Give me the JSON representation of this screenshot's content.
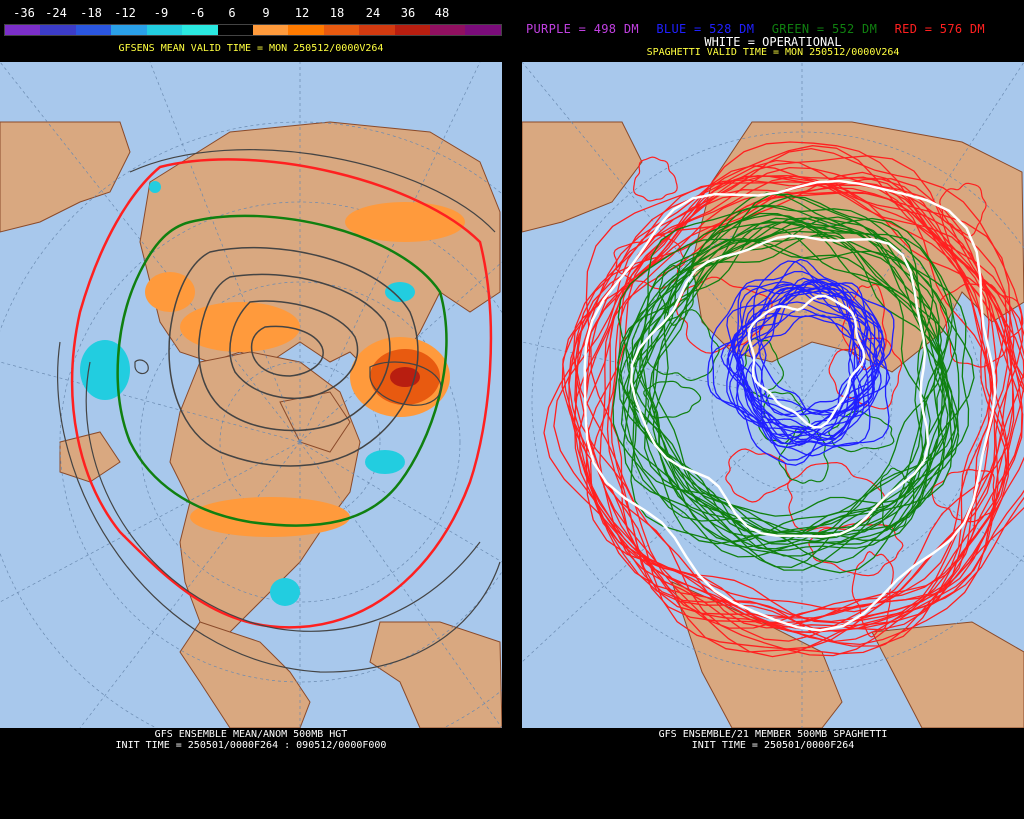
{
  "left_panel": {
    "scale_labels": [
      "-36",
      "-24",
      "-18",
      "-12",
      "-9",
      "-6",
      "6",
      "9",
      "12",
      "18",
      "24",
      "36",
      "48"
    ],
    "scale_colors": [
      "#7b2fc9",
      "#3c3cc8",
      "#2a56e0",
      "#2aa0e8",
      "#22cde0",
      "#2ae8e0",
      "#000000",
      "#ff9a3c",
      "#ff7a00",
      "#e85a10",
      "#d23a10",
      "#b81e10",
      "#901060",
      "#7a0c7a"
    ],
    "valid_time": "GFSENS MEAN VALID TIME = MON 250512/0000V264",
    "footer_line1": "GFS ENSEMBLE MEAN/ANOM 500MB HGT",
    "footer_line2": "INIT TIME = 250501/0000F264 : 090512/0000F000"
  },
  "right_panel": {
    "legend": {
      "purple": "PURPLE = 498 DM",
      "blue": "BLUE = 528 DM",
      "green": "GREEN = 552 DM",
      "red": "RED = 576 DM",
      "white": "WHITE = OPERATIONAL"
    },
    "colors": {
      "purple": "#c040e0",
      "blue": "#2020ff",
      "green": "#108010",
      "red": "#ff2020",
      "white": "#ffffff"
    },
    "valid_time": "SPAGHETTI VALID TIME = MON 250512/0000V264",
    "footer_line1": "GFS ENSEMBLE/21 MEMBER 500MB SPAGHETTI",
    "footer_line2": "INIT TIME = 250501/0000F264"
  },
  "map_colors": {
    "ocean": "#a8c8ec",
    "land": "#d9a880",
    "border": "#8a4a2a"
  }
}
